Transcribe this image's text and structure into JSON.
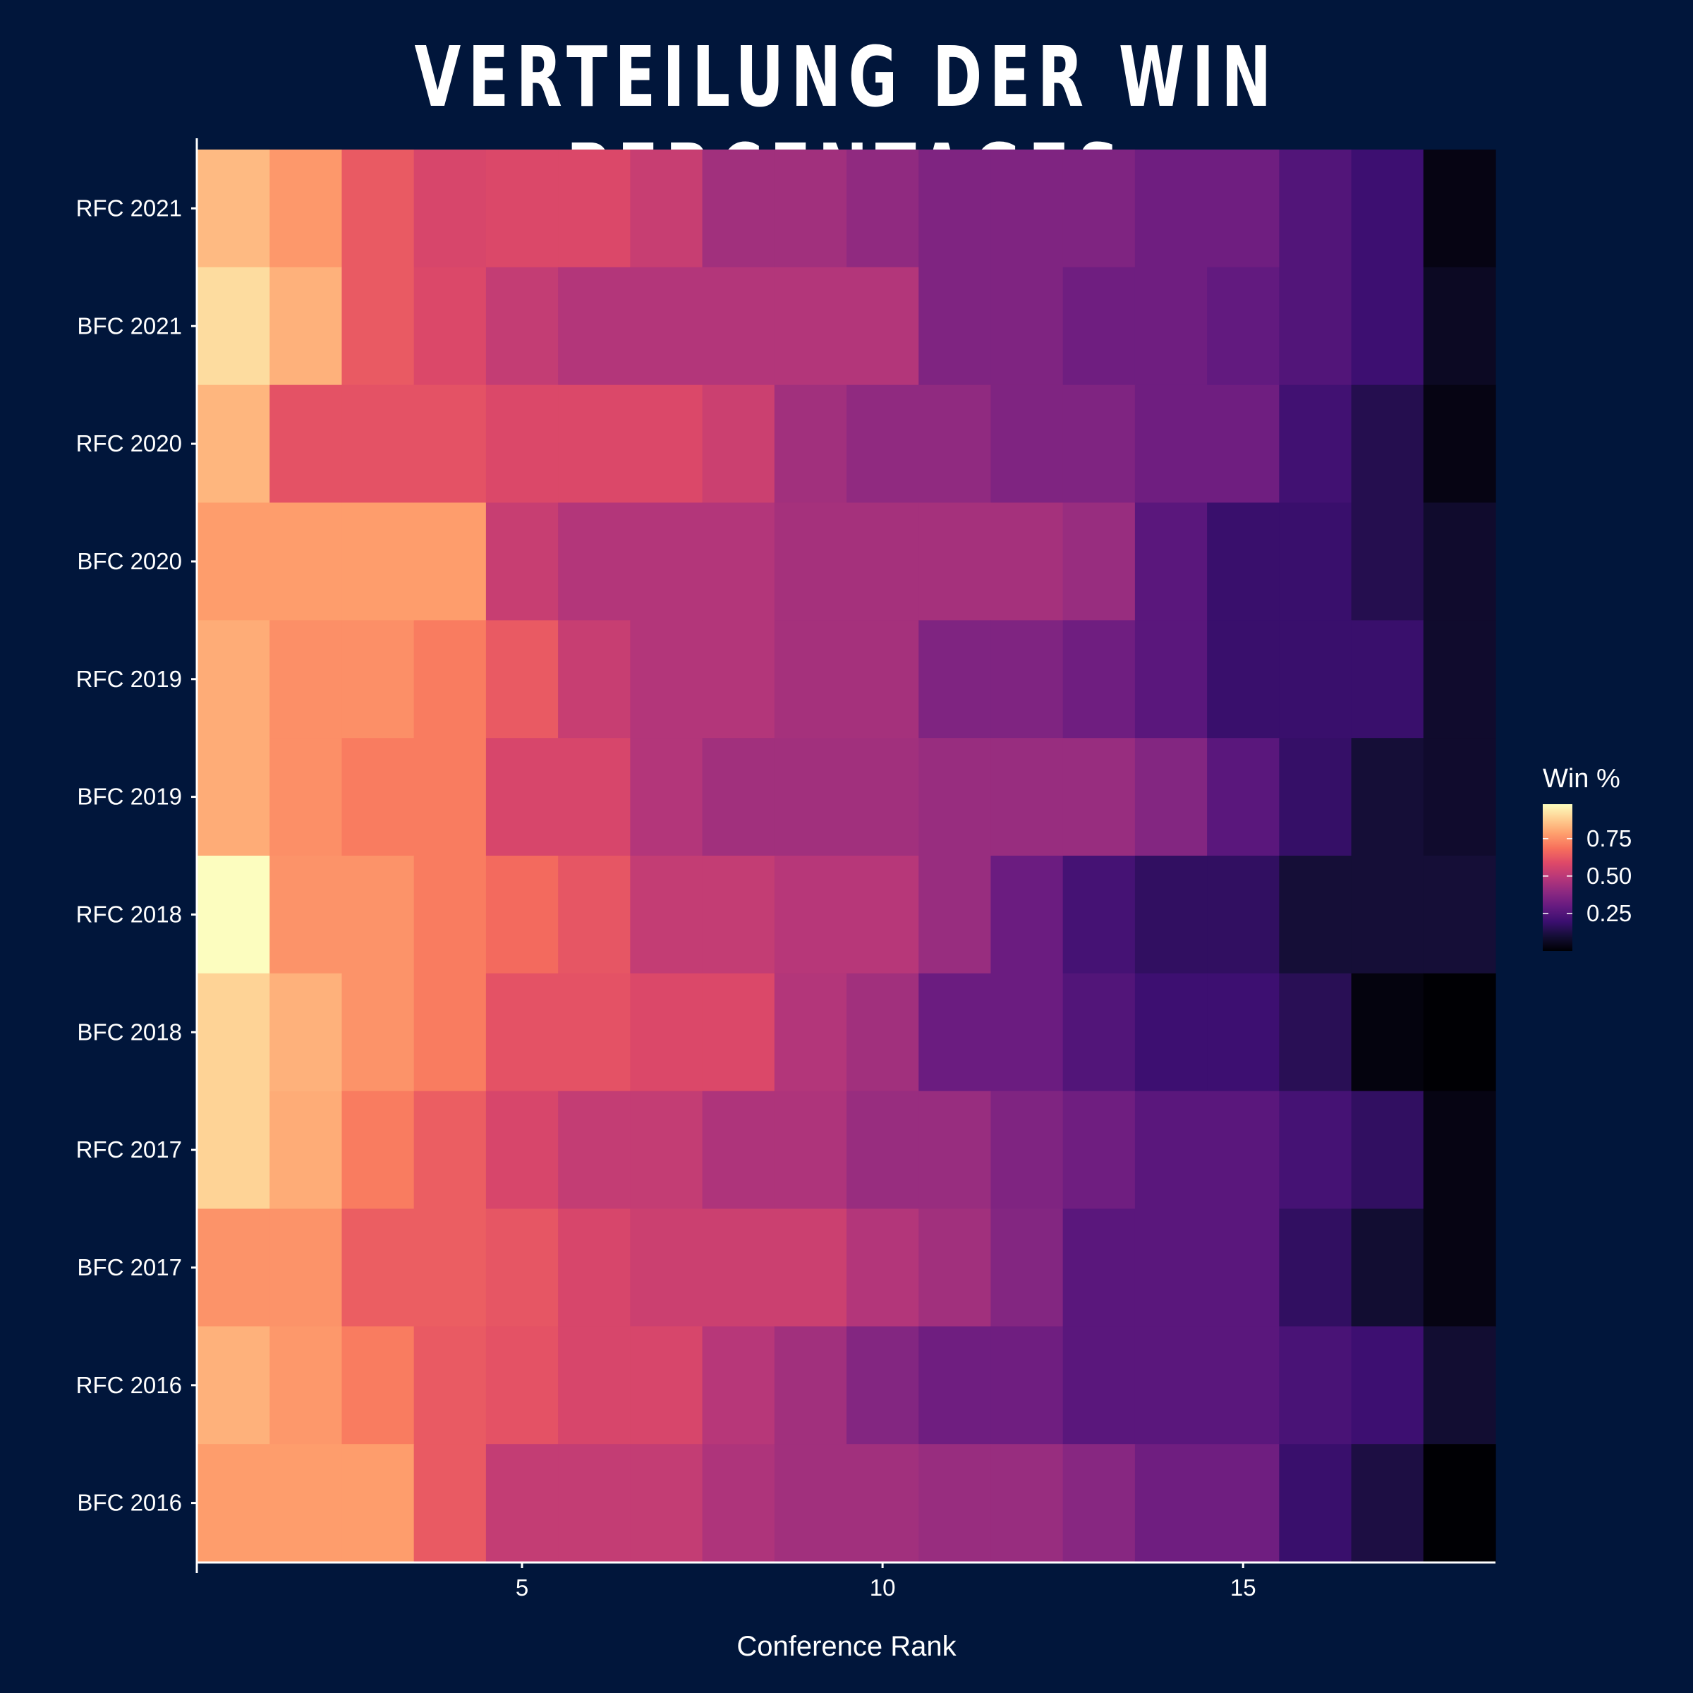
{
  "title": "VERTEILUNG DER WIN PERCENTAGES",
  "chart_data": {
    "type": "heatmap",
    "title": "VERTEILUNG DER WIN PERCENTAGES",
    "xlabel": "Conference Rank",
    "ylabel": "",
    "x": [
      1,
      2,
      3,
      4,
      5,
      6,
      7,
      8,
      9,
      10,
      11,
      12,
      13,
      14,
      15,
      16,
      17,
      18
    ],
    "x_ticks": [
      5,
      10,
      15
    ],
    "xlim": [
      0.5,
      18.5
    ],
    "rows": [
      "RFC 2021",
      "BFC 2021",
      "RFC 2020",
      "BFC 2020",
      "RFC 2019",
      "BFC 2019",
      "RFC 2018",
      "BFC 2018",
      "RFC 2017",
      "BFC 2017",
      "RFC 2016",
      "BFC 2016"
    ],
    "values": [
      [
        0.84,
        0.77,
        0.63,
        0.57,
        0.58,
        0.58,
        0.53,
        0.44,
        0.44,
        0.4,
        0.36,
        0.36,
        0.36,
        0.32,
        0.32,
        0.25,
        0.2,
        0.03
      ],
      [
        0.91,
        0.82,
        0.63,
        0.58,
        0.52,
        0.48,
        0.48,
        0.48,
        0.48,
        0.48,
        0.36,
        0.36,
        0.32,
        0.32,
        0.29,
        0.25,
        0.2,
        0.06
      ],
      [
        0.83,
        0.61,
        0.61,
        0.61,
        0.58,
        0.58,
        0.58,
        0.54,
        0.44,
        0.4,
        0.4,
        0.36,
        0.36,
        0.32,
        0.32,
        0.21,
        0.14,
        0.03
      ],
      [
        0.78,
        0.78,
        0.78,
        0.78,
        0.53,
        0.48,
        0.48,
        0.48,
        0.45,
        0.45,
        0.45,
        0.45,
        0.42,
        0.27,
        0.19,
        0.19,
        0.14,
        0.08
      ],
      [
        0.81,
        0.75,
        0.75,
        0.71,
        0.63,
        0.53,
        0.48,
        0.48,
        0.45,
        0.45,
        0.36,
        0.36,
        0.32,
        0.27,
        0.19,
        0.19,
        0.19,
        0.08
      ],
      [
        0.81,
        0.75,
        0.71,
        0.71,
        0.57,
        0.57,
        0.48,
        0.44,
        0.44,
        0.44,
        0.42,
        0.42,
        0.42,
        0.37,
        0.27,
        0.18,
        0.1,
        0.08
      ],
      [
        0.98,
        0.76,
        0.76,
        0.71,
        0.67,
        0.62,
        0.52,
        0.52,
        0.49,
        0.49,
        0.42,
        0.31,
        0.22,
        0.17,
        0.17,
        0.1,
        0.1,
        0.1
      ],
      [
        0.89,
        0.82,
        0.76,
        0.71,
        0.61,
        0.61,
        0.58,
        0.58,
        0.48,
        0.44,
        0.31,
        0.31,
        0.25,
        0.2,
        0.2,
        0.15,
        0.02,
        0.0
      ],
      [
        0.89,
        0.81,
        0.71,
        0.64,
        0.57,
        0.52,
        0.52,
        0.47,
        0.47,
        0.42,
        0.42,
        0.36,
        0.32,
        0.27,
        0.27,
        0.22,
        0.17,
        0.03
      ],
      [
        0.76,
        0.76,
        0.64,
        0.64,
        0.62,
        0.57,
        0.54,
        0.54,
        0.54,
        0.48,
        0.44,
        0.37,
        0.27,
        0.27,
        0.27,
        0.17,
        0.09,
        0.03
      ],
      [
        0.82,
        0.77,
        0.71,
        0.63,
        0.61,
        0.57,
        0.57,
        0.49,
        0.44,
        0.37,
        0.32,
        0.32,
        0.27,
        0.27,
        0.27,
        0.23,
        0.2,
        0.09
      ],
      [
        0.78,
        0.78,
        0.78,
        0.63,
        0.52,
        0.52,
        0.52,
        0.47,
        0.44,
        0.44,
        0.42,
        0.42,
        0.38,
        0.32,
        0.32,
        0.19,
        0.12,
        0.0
      ]
    ],
    "legend": {
      "title": "Win %",
      "ticks": [
        "0.75",
        "0.50",
        "0.25"
      ],
      "tick_values": [
        0.75,
        0.5,
        0.25
      ],
      "range": [
        0.0,
        0.98
      ],
      "placement": "right"
    },
    "colorscale": "magma",
    "grid": false
  },
  "colors": {
    "background": "#01163b",
    "text": "#ffffff",
    "axis": "#ffffff"
  }
}
